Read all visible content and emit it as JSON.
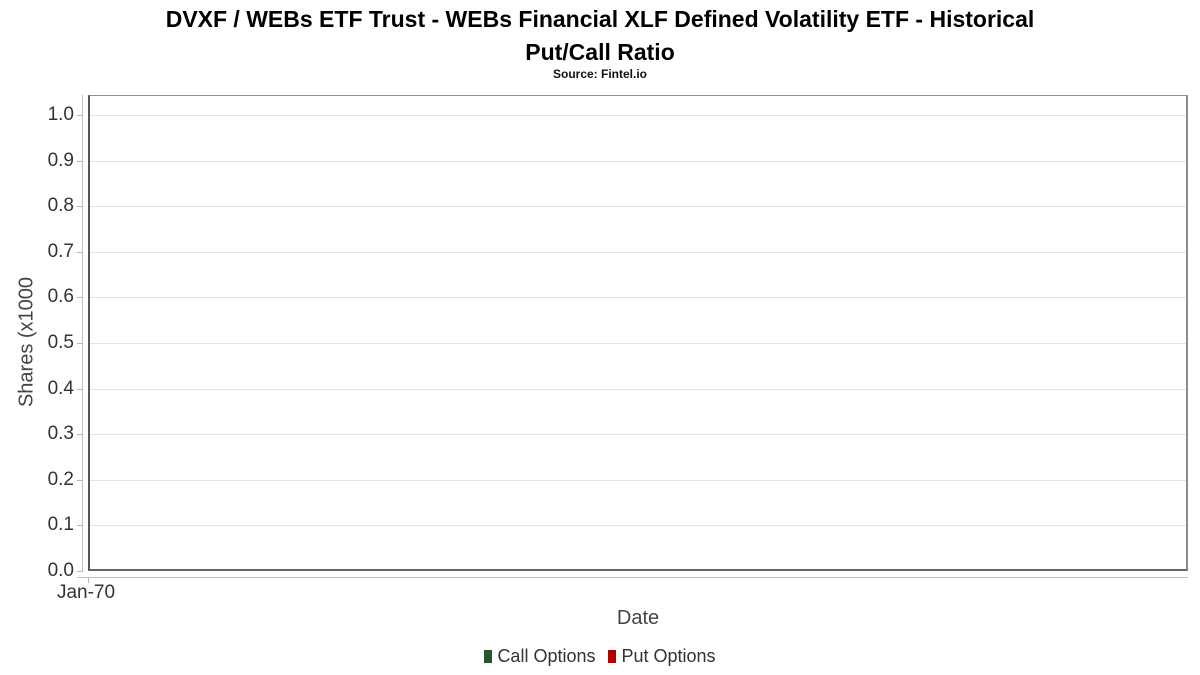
{
  "title": {
    "line1": "DVXF / WEBs ETF Trust - WEBs Financial XLF Defined Volatility ETF - Historical",
    "line2": "Put/Call Ratio"
  },
  "subtitle": "Source: Fintel.io",
  "chart_data": {
    "type": "line",
    "title": "DVXF / WEBs ETF Trust - WEBs Financial XLF Defined Volatility ETF - Historical Put/Call Ratio",
    "subtitle": "Source: Fintel.io",
    "xlabel": "Date",
    "ylabel": "Shares (x1000",
    "ylim": [
      0.0,
      1.05
    ],
    "ytick_labels": [
      "1.0",
      "0.9",
      "0.8",
      "0.7",
      "0.6",
      "0.5",
      "0.4",
      "0.3",
      "0.2",
      "0.1",
      "0.0"
    ],
    "xtick_labels": [
      "Jan-70"
    ],
    "grid": true,
    "legend_position": "bottom",
    "series": [
      {
        "name": "Call Options",
        "color": "#26562e",
        "values": []
      },
      {
        "name": "Put Options",
        "color": "#b30000",
        "values": []
      }
    ]
  }
}
